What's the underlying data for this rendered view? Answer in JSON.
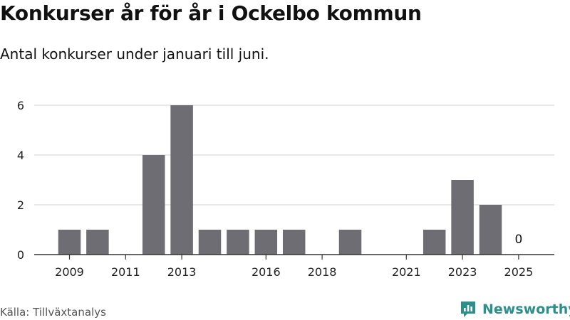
{
  "header": {
    "title": "Konkurser år för år i Ockelbo kommun",
    "subtitle": "Antal konkurser under januari till juni."
  },
  "footer": {
    "source": "Källa: Tillväxtanalys",
    "brand": "Newsworthy"
  },
  "colors": {
    "bar": "#6e6d73",
    "grid": "#d9d9d9",
    "axis": "#333333",
    "brand": "#2b8f8c"
  },
  "icons": {
    "brand_logo": "newsworthy-bar-chart-icon"
  },
  "chart_data": {
    "type": "bar",
    "title": "Konkurser år för år i Ockelbo kommun",
    "subtitle": "Antal konkurser under januari till juni.",
    "xlabel": "",
    "ylabel": "",
    "x": [
      2009,
      2010,
      2011,
      2012,
      2013,
      2014,
      2015,
      2016,
      2017,
      2018,
      2019,
      2020,
      2021,
      2022,
      2023,
      2024,
      2025
    ],
    "values": [
      1,
      1,
      0,
      4,
      6,
      1,
      1,
      1,
      1,
      0,
      1,
      0,
      0,
      1,
      3,
      2,
      0
    ],
    "xticks": [
      2009,
      2011,
      2013,
      2016,
      2018,
      2021,
      2023,
      2025
    ],
    "yticks": [
      0,
      2,
      4,
      6
    ],
    "ylim": [
      0,
      6
    ],
    "grid": true,
    "annotations": [
      {
        "x": 2025,
        "text": "0"
      }
    ]
  }
}
